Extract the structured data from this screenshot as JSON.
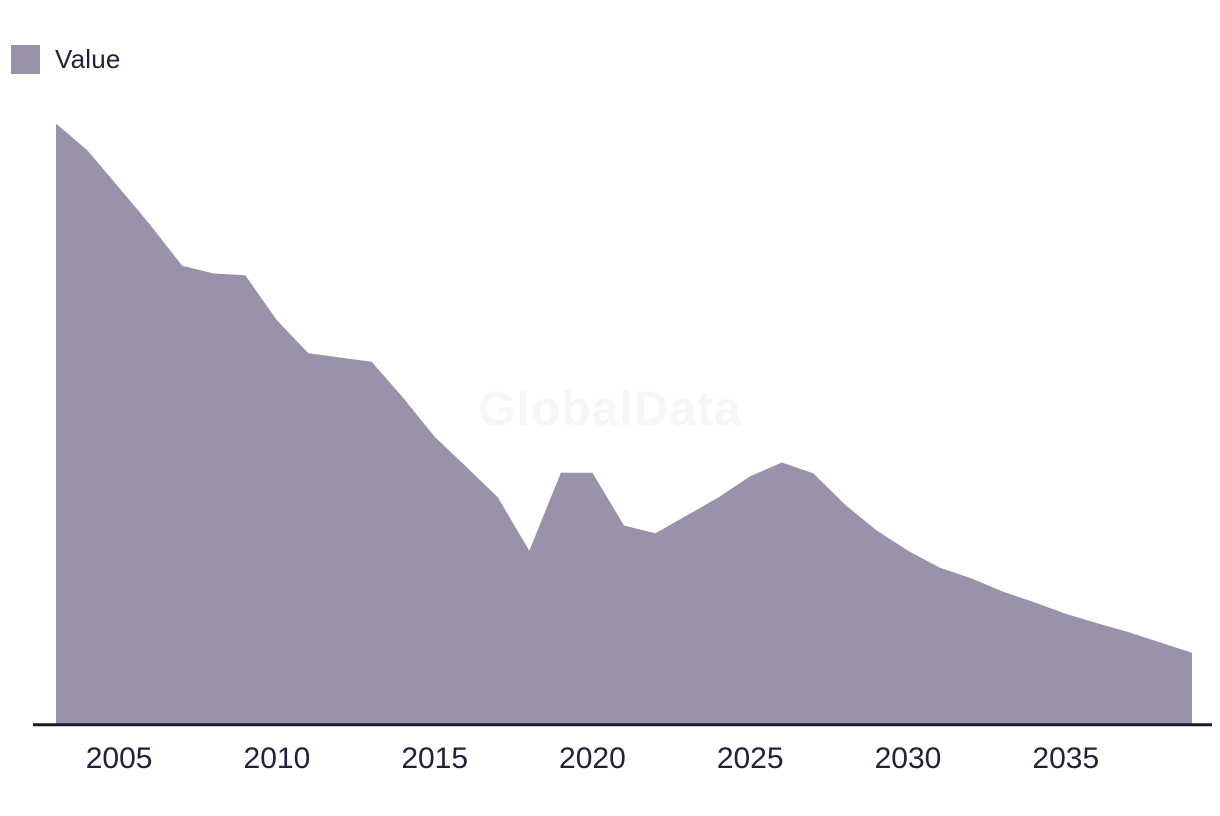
{
  "legend": {
    "position": "top-left",
    "items": [
      {
        "label": "Value",
        "swatch_color": "#9a92aa"
      }
    ]
  },
  "watermark": {
    "text": "GlobalData",
    "color": "#f6f6f8"
  },
  "colors": {
    "series_fill": "#9a92aa",
    "axis_line": "#1a1a32",
    "tick_text": "#21213c",
    "background": "#ffffff"
  },
  "chart_data": {
    "type": "area",
    "title": "",
    "xlabel": "",
    "ylabel": "",
    "legend_entries": [
      "Value"
    ],
    "x": [
      2003,
      2004,
      2005,
      2006,
      2007,
      2008,
      2009,
      2010,
      2011,
      2012,
      2013,
      2014,
      2015,
      2016,
      2017,
      2018,
      2019,
      2020,
      2021,
      2022,
      2023,
      2024,
      2025,
      2026,
      2027,
      2028,
      2029,
      2030,
      2031,
      2032,
      2033,
      2034,
      2035,
      2036,
      2037,
      2038,
      2039
    ],
    "series": [
      {
        "name": "Value",
        "values": [
          100.0,
          95.5,
          89.3,
          83.0,
          76.3,
          75.0,
          74.7,
          67.2,
          61.7,
          61.0,
          60.3,
          54.3,
          47.8,
          42.8,
          37.7,
          28.8,
          41.8,
          41.8,
          33.0,
          31.7,
          34.7,
          37.7,
          41.2,
          43.5,
          41.7,
          36.5,
          32.2,
          28.8,
          26.0,
          24.2,
          22.0,
          20.2,
          18.3,
          16.7,
          15.2,
          13.5,
          11.8
        ]
      }
    ],
    "x_ticks": [
      2005,
      2010,
      2015,
      2020,
      2025,
      2030,
      2035
    ],
    "xlim": [
      2003,
      2039
    ],
    "ylim": [
      0,
      104
    ],
    "y_axis_visible": false,
    "x_axis_visible": true,
    "grid": false,
    "legend_position": "top-left"
  }
}
